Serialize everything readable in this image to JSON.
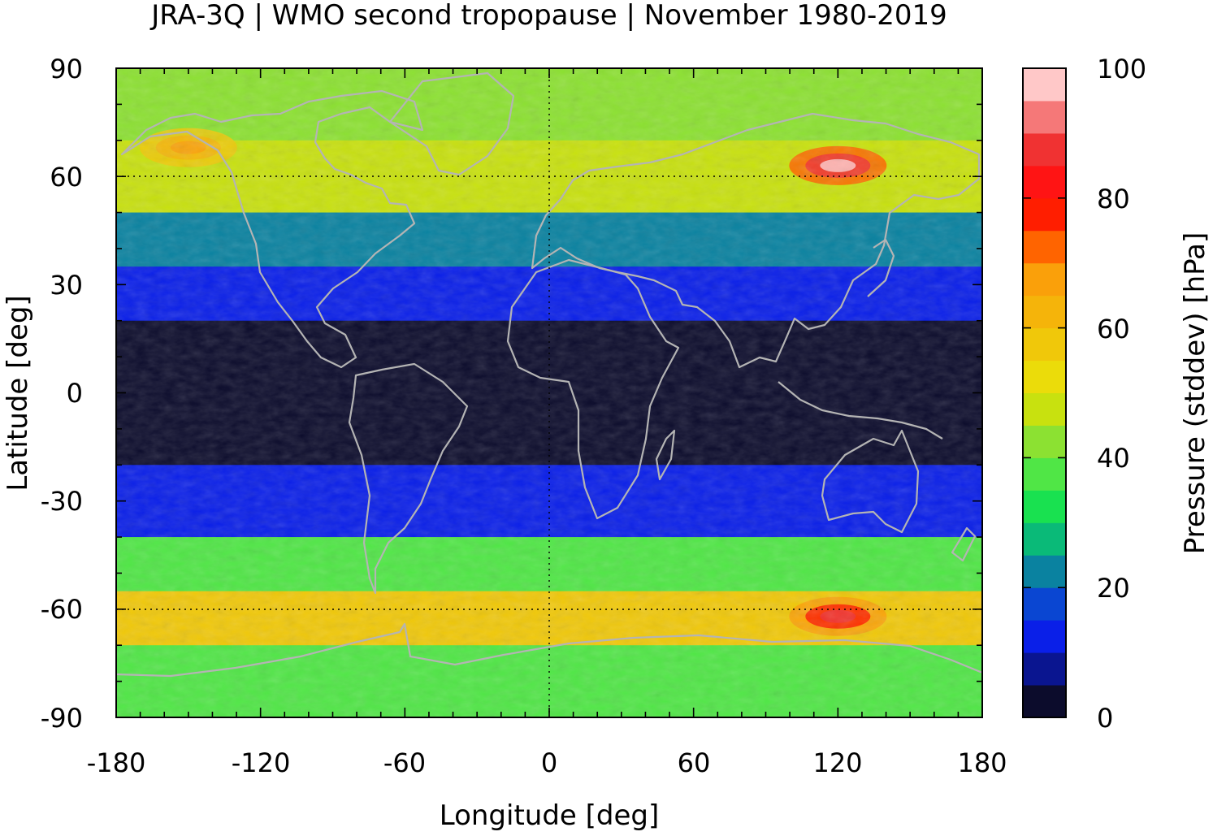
{
  "chart_data": {
    "type": "heatmap",
    "title": "JRA-3Q | WMO second tropopause | November 1980-2019",
    "xlabel": "Longitude [deg]",
    "ylabel": "Latitude [deg]",
    "xlim": [
      -180,
      180
    ],
    "ylim": [
      -90,
      90
    ],
    "x_ticks": [
      "-180",
      "-120",
      "-60",
      "0",
      "60",
      "120",
      "180"
    ],
    "y_ticks": [
      "90",
      "60",
      "30",
      "0",
      "-30",
      "-60",
      "-90"
    ],
    "grid": "dotted at ±60 latitude and 0° longitude",
    "coastlines": true,
    "colorbar": {
      "label": "Pressure (stddev) [hPa]",
      "range": [
        0,
        100
      ],
      "tick_labels": [
        "100",
        "80",
        "60",
        "40",
        "20",
        "0"
      ],
      "levels": [
        0,
        5,
        10,
        15,
        20,
        25,
        30,
        35,
        40,
        45,
        50,
        55,
        60,
        65,
        70,
        75,
        80,
        85,
        90,
        95,
        100
      ],
      "colors": [
        "#0c0c2c",
        "#0a1590",
        "#0a1fe8",
        "#0a46d2",
        "#0a82a0",
        "#0aba78",
        "#19e150",
        "#50e646",
        "#8ce132",
        "#c8e10f",
        "#ebdc0a",
        "#f0c80a",
        "#f5b40a",
        "#faa00a",
        "#ff6400",
        "#ff1e00",
        "#ff1414",
        "#f03232",
        "#f57878",
        "#ffc8c8"
      ]
    },
    "field_summary": [
      {
        "lat_band": "70 to 90",
        "stddev_hPa": 40
      },
      {
        "lat_band": "50 to 70",
        "stddev_hPa": 45
      },
      {
        "lat_band": "35 to 50",
        "stddev_hPa": 20
      },
      {
        "lat_band": "20 to 35",
        "stddev_hPa": 10
      },
      {
        "lat_band": "-20 to 20",
        "stddev_hPa": 3
      },
      {
        "lat_band": "-40 to -20",
        "stddev_hPa": 10
      },
      {
        "lat_band": "-55 to -40",
        "stddev_hPa": 35
      },
      {
        "lat_band": "-70 to -55",
        "stddev_hPa": 55
      },
      {
        "lat_band": "-90 to -70",
        "stddev_hPa": 35
      }
    ],
    "local_maxima": [
      {
        "lon": 120,
        "lat": 63,
        "stddev_hPa": 95
      },
      {
        "lon": 120,
        "lat": -62,
        "stddev_hPa": 85
      },
      {
        "lon": -150,
        "lat": 68,
        "stddev_hPa": 65
      }
    ]
  }
}
